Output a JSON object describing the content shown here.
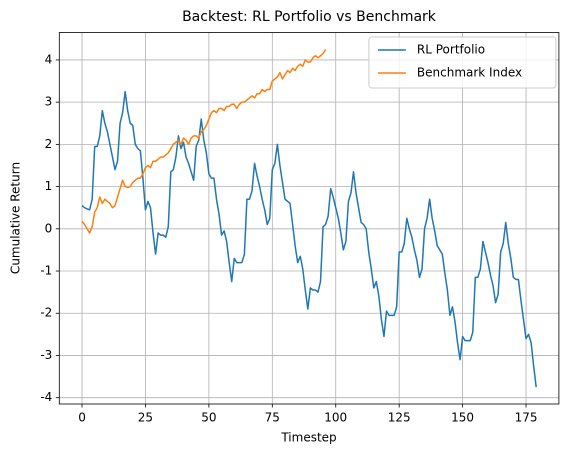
{
  "chart_data": {
    "type": "line",
    "title": "Backtest: RL Portfolio vs Benchmark",
    "xlabel": "Timestep",
    "ylabel": "Cumulative Return",
    "xlim": [
      -8.95,
      187.95
    ],
    "xticks": [
      0,
      25,
      50,
      75,
      100,
      125,
      150,
      175
    ],
    "ylim": [
      -4.15,
      4.65
    ],
    "yticks": [
      -4,
      -3,
      -2,
      -1,
      0,
      1,
      2,
      3,
      4
    ],
    "grid": true,
    "legend": "upper right",
    "series": [
      {
        "name": "RL Portfolio",
        "color": "#1f77b4",
        "x": [
          0,
          1,
          2,
          3,
          4,
          5,
          6,
          7,
          8,
          9,
          10,
          11,
          12,
          13,
          14,
          15,
          16,
          17,
          18,
          19,
          20,
          21,
          22,
          23,
          24,
          25,
          26,
          27,
          28,
          29,
          30,
          31,
          32,
          33,
          34,
          35,
          36,
          37,
          38,
          39,
          40,
          41,
          42,
          43,
          44,
          45,
          46,
          47,
          48,
          49,
          50,
          51,
          52,
          53,
          54,
          55,
          56,
          57,
          58,
          59,
          60,
          61,
          62,
          63,
          64,
          65,
          66,
          67,
          68,
          69,
          70,
          71,
          72,
          73,
          74,
          75,
          76,
          77,
          78,
          79,
          80,
          81,
          82,
          83,
          84,
          85,
          86,
          87,
          88,
          89,
          90,
          91,
          92,
          93,
          94,
          95,
          96,
          97,
          98,
          99,
          100,
          101,
          102,
          103,
          104,
          105,
          106,
          107,
          108,
          109,
          110,
          111,
          112,
          113,
          114,
          115,
          116,
          117,
          118,
          119,
          120,
          121,
          122,
          123,
          124,
          125,
          126,
          127,
          128,
          129,
          130,
          131,
          132,
          133,
          134,
          135,
          136,
          137,
          138,
          139,
          140,
          141,
          142,
          143,
          144,
          145,
          146,
          147,
          148,
          149,
          150,
          151,
          152,
          153,
          154,
          155,
          156,
          157,
          158,
          159,
          160,
          161,
          162,
          163,
          164,
          165,
          166,
          167,
          168,
          169,
          170,
          171,
          172,
          173,
          174,
          175,
          176,
          177,
          178,
          179
        ],
        "values": [
          0.55,
          0.5,
          0.47,
          0.45,
          0.7,
          1.95,
          1.95,
          2.2,
          2.8,
          2.5,
          2.3,
          2.0,
          1.7,
          1.4,
          1.6,
          2.5,
          2.75,
          3.25,
          2.8,
          2.5,
          2.45,
          2.0,
          1.9,
          1.85,
          1.2,
          0.45,
          0.65,
          0.5,
          -0.1,
          -0.6,
          -0.1,
          -0.15,
          -0.15,
          -0.2,
          0.05,
          1.35,
          1.4,
          1.7,
          2.2,
          1.9,
          2.05,
          1.7,
          1.55,
          1.35,
          1.15,
          1.95,
          2.1,
          2.6,
          2.1,
          1.8,
          1.3,
          1.2,
          1.2,
          0.7,
          0.35,
          -0.15,
          -0.05,
          -0.3,
          -0.8,
          -1.25,
          -0.7,
          -0.8,
          -0.8,
          -0.8,
          -0.6,
          0.7,
          0.7,
          0.9,
          1.55,
          1.25,
          1.0,
          0.7,
          0.45,
          0.1,
          0.25,
          1.4,
          1.55,
          2.0,
          1.5,
          1.1,
          0.7,
          0.65,
          0.6,
          0.1,
          -0.4,
          -0.8,
          -0.65,
          -0.95,
          -1.45,
          -1.9,
          -1.4,
          -1.45,
          -1.45,
          -1.5,
          -1.25,
          0.05,
          0.1,
          0.3,
          0.95,
          0.75,
          0.5,
          0.25,
          -0.1,
          -0.5,
          -0.3,
          0.65,
          0.85,
          1.35,
          0.85,
          0.5,
          0.15,
          0.1,
          0.0,
          -0.55,
          -0.95,
          -1.4,
          -1.25,
          -1.6,
          -2.15,
          -2.55,
          -1.95,
          -2.05,
          -2.05,
          -2.05,
          -1.85,
          -0.55,
          -0.55,
          -0.35,
          0.25,
          0.0,
          -0.2,
          -0.5,
          -0.75,
          -1.15,
          -0.95,
          0.0,
          0.25,
          0.7,
          0.25,
          -0.05,
          -0.4,
          -0.5,
          -0.6,
          -1.05,
          -1.45,
          -2.05,
          -1.85,
          -2.2,
          -2.7,
          -3.1,
          -2.55,
          -2.65,
          -2.65,
          -2.65,
          -2.45,
          -1.15,
          -1.15,
          -0.95,
          -0.3,
          -0.55,
          -0.8,
          -1.1,
          -1.35,
          -1.75,
          -1.55,
          -0.55,
          -0.35,
          0.15,
          -0.35,
          -0.7,
          -1.15,
          -1.2,
          -1.2,
          -1.7,
          -2.15,
          -2.6,
          -2.5,
          -2.7,
          -3.25,
          -3.75
        ]
      },
      {
        "name": "Benchmark Index",
        "color": "#ff7f0e",
        "x": [
          0,
          1,
          2,
          3,
          4,
          5,
          6,
          7,
          8,
          9,
          10,
          11,
          12,
          13,
          14,
          15,
          16,
          17,
          18,
          19,
          20,
          21,
          22,
          23,
          24,
          25,
          26,
          27,
          28,
          29,
          30,
          31,
          32,
          33,
          34,
          35,
          36,
          37,
          38,
          39,
          40,
          41,
          42,
          43,
          44,
          45,
          46,
          47,
          48,
          49,
          50,
          51,
          52,
          53,
          54,
          55,
          56,
          57,
          58,
          59,
          60,
          61,
          62,
          63,
          64,
          65,
          66,
          67,
          68,
          69,
          70,
          71,
          72,
          73,
          74,
          75,
          76,
          77,
          78,
          79,
          80,
          81,
          82,
          83,
          84,
          85,
          86,
          87,
          88,
          89,
          90,
          91,
          92,
          93,
          94,
          95,
          96
        ],
        "values": [
          0.18,
          0.1,
          0.0,
          -0.1,
          0.05,
          0.4,
          0.5,
          0.75,
          0.6,
          0.7,
          0.65,
          0.6,
          0.5,
          0.55,
          0.75,
          0.95,
          1.15,
          1.0,
          0.98,
          1.0,
          1.1,
          1.15,
          1.2,
          1.2,
          1.3,
          1.45,
          1.5,
          1.45,
          1.6,
          1.6,
          1.65,
          1.7,
          1.7,
          1.75,
          1.8,
          1.9,
          2.0,
          2.05,
          2.1,
          2.0,
          2.15,
          2.1,
          2.0,
          2.15,
          2.2,
          2.2,
          2.15,
          2.3,
          2.35,
          2.45,
          2.6,
          2.75,
          2.8,
          2.75,
          2.85,
          2.85,
          2.8,
          2.9,
          2.9,
          2.95,
          2.95,
          2.85,
          2.95,
          3.0,
          3.0,
          3.05,
          3.1,
          3.15,
          3.1,
          3.2,
          3.2,
          3.3,
          3.25,
          3.3,
          3.3,
          3.5,
          3.55,
          3.6,
          3.7,
          3.55,
          3.65,
          3.75,
          3.7,
          3.8,
          3.75,
          3.85,
          3.9,
          3.85,
          4.0,
          3.95,
          3.95,
          4.05,
          4.1,
          4.05,
          4.1,
          4.15,
          4.25
        ]
      }
    ]
  }
}
